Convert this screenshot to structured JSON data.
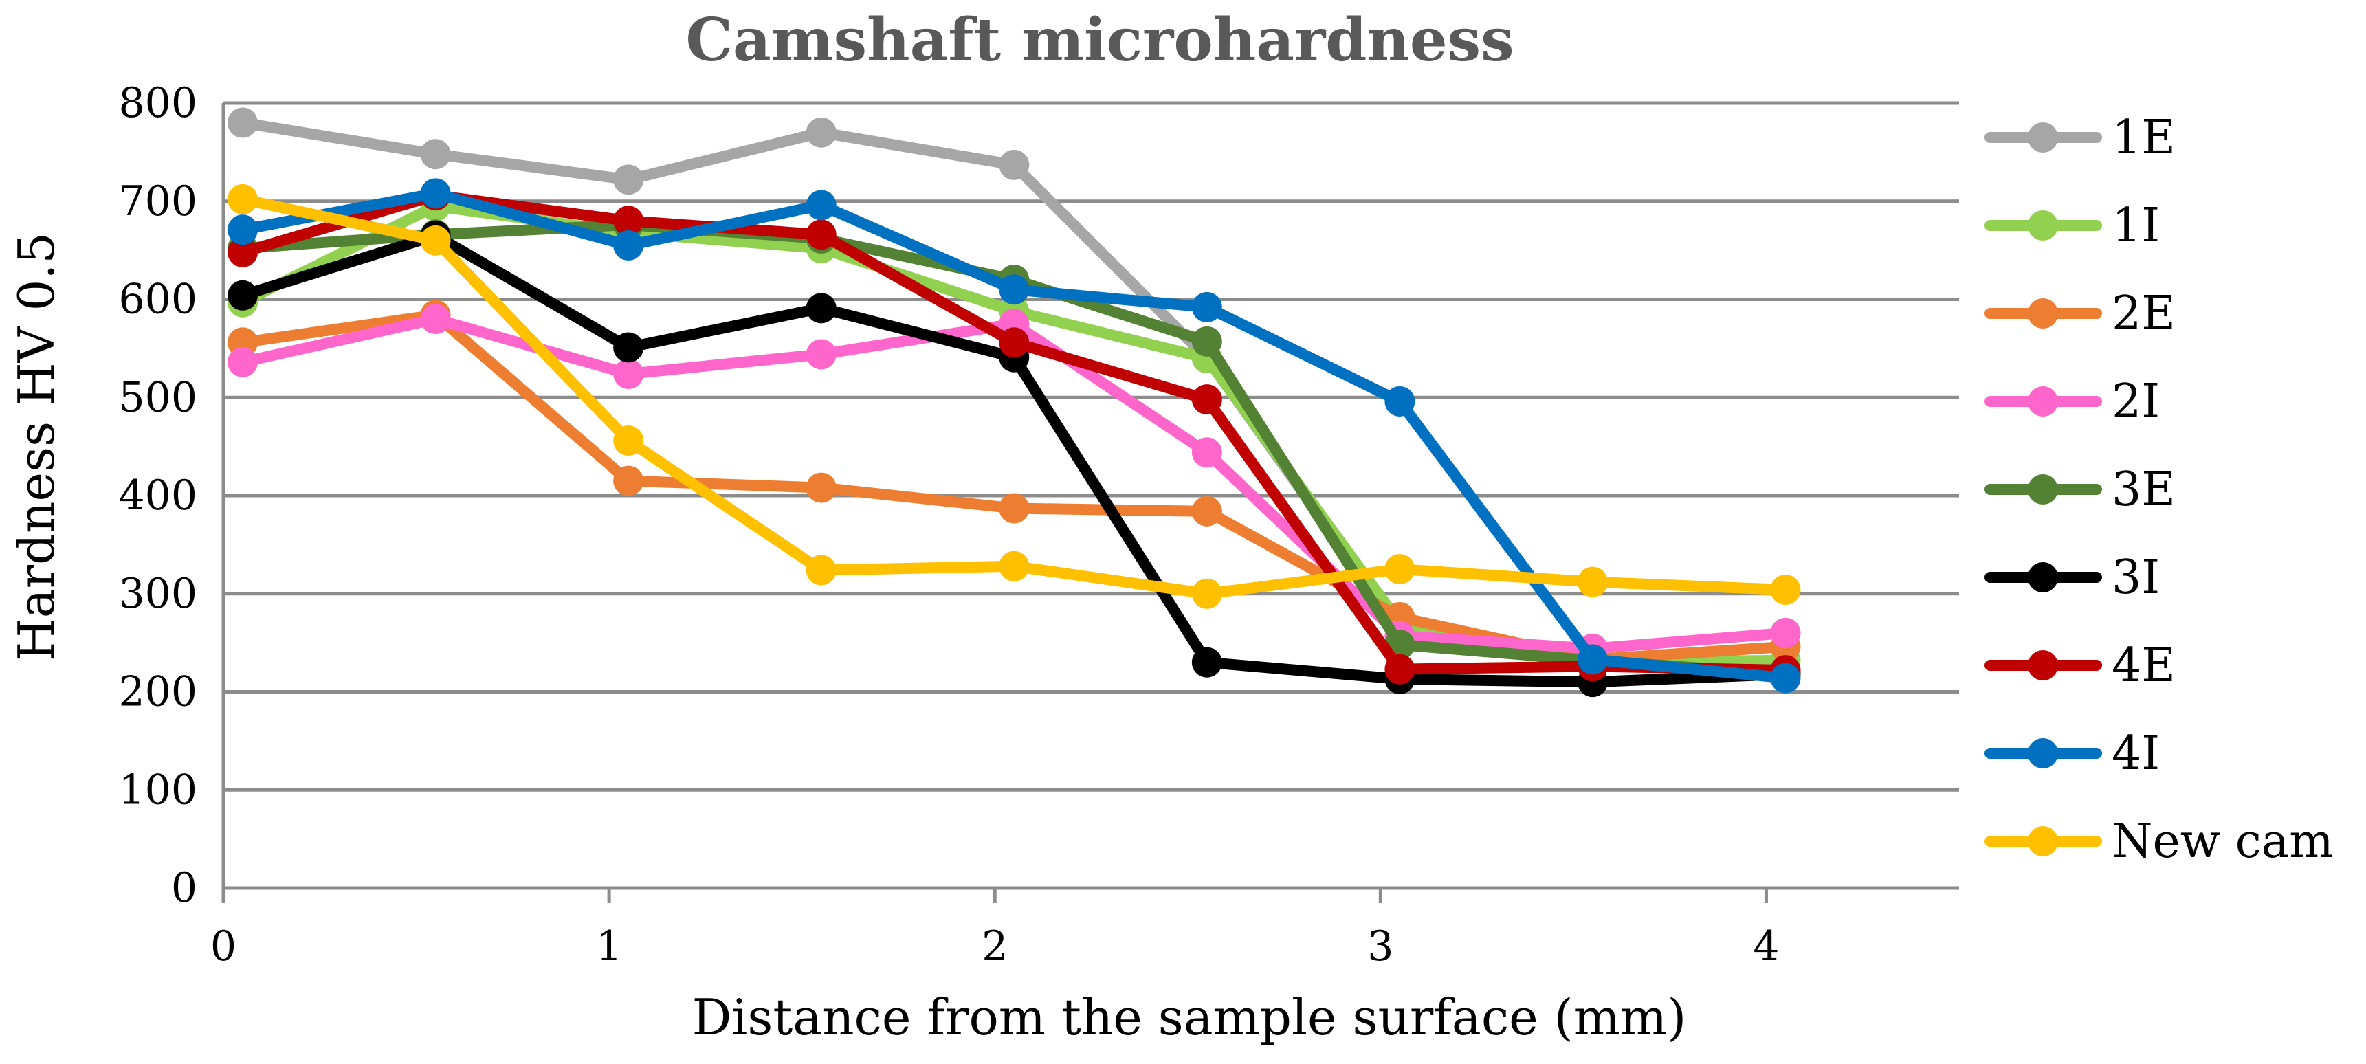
{
  "chart_data": {
    "type": "line",
    "title": "Camshaft microhardness",
    "xlabel": "Distance from the sample surface (mm)",
    "ylabel": "Hardness HV 0.5",
    "xlim": [
      0,
      4.5
    ],
    "ylim": [
      0,
      800
    ],
    "xticks": [
      0,
      1,
      2,
      3,
      4
    ],
    "yticks": [
      0,
      100,
      200,
      300,
      400,
      500,
      600,
      700,
      800
    ],
    "grid": "horizontal",
    "legend_position": "right",
    "x": [
      0.05,
      0.55,
      1.05,
      1.55,
      2.05,
      2.55,
      3.05,
      3.55,
      4.05
    ],
    "series": [
      {
        "name": "1E",
        "color": "#a6a6a6",
        "values": [
          780,
          748,
          722,
          770,
          737,
          540,
          265,
          232,
          222
        ]
      },
      {
        "name": "1I",
        "color": "#92d050",
        "values": [
          597,
          695,
          668,
          652,
          588,
          540,
          270,
          230,
          232
        ]
      },
      {
        "name": "2E",
        "color": "#ed7d31",
        "values": [
          556,
          584,
          415,
          408,
          387,
          384,
          276,
          233,
          246
        ]
      },
      {
        "name": "2I",
        "color": "#ff66cc",
        "values": [
          536,
          580,
          524,
          544,
          575,
          444,
          257,
          244,
          260
        ]
      },
      {
        "name": "3E",
        "color": "#548235",
        "values": [
          652,
          666,
          676,
          662,
          620,
          557,
          248,
          232,
          218
        ]
      },
      {
        "name": "3I",
        "color": "#000000",
        "values": [
          604,
          665,
          551,
          591,
          541,
          230,
          213,
          210,
          218
        ]
      },
      {
        "name": "4E",
        "color": "#c00000",
        "values": [
          648,
          706,
          680,
          666,
          556,
          498,
          223,
          226,
          222
        ]
      },
      {
        "name": "4I",
        "color": "#0070c0",
        "values": [
          671,
          708,
          655,
          696,
          610,
          592,
          496,
          233,
          214
        ]
      },
      {
        "name": "New cam",
        "color": "#ffc000",
        "values": [
          702,
          660,
          456,
          324,
          328,
          300,
          325,
          312,
          304
        ]
      }
    ]
  }
}
